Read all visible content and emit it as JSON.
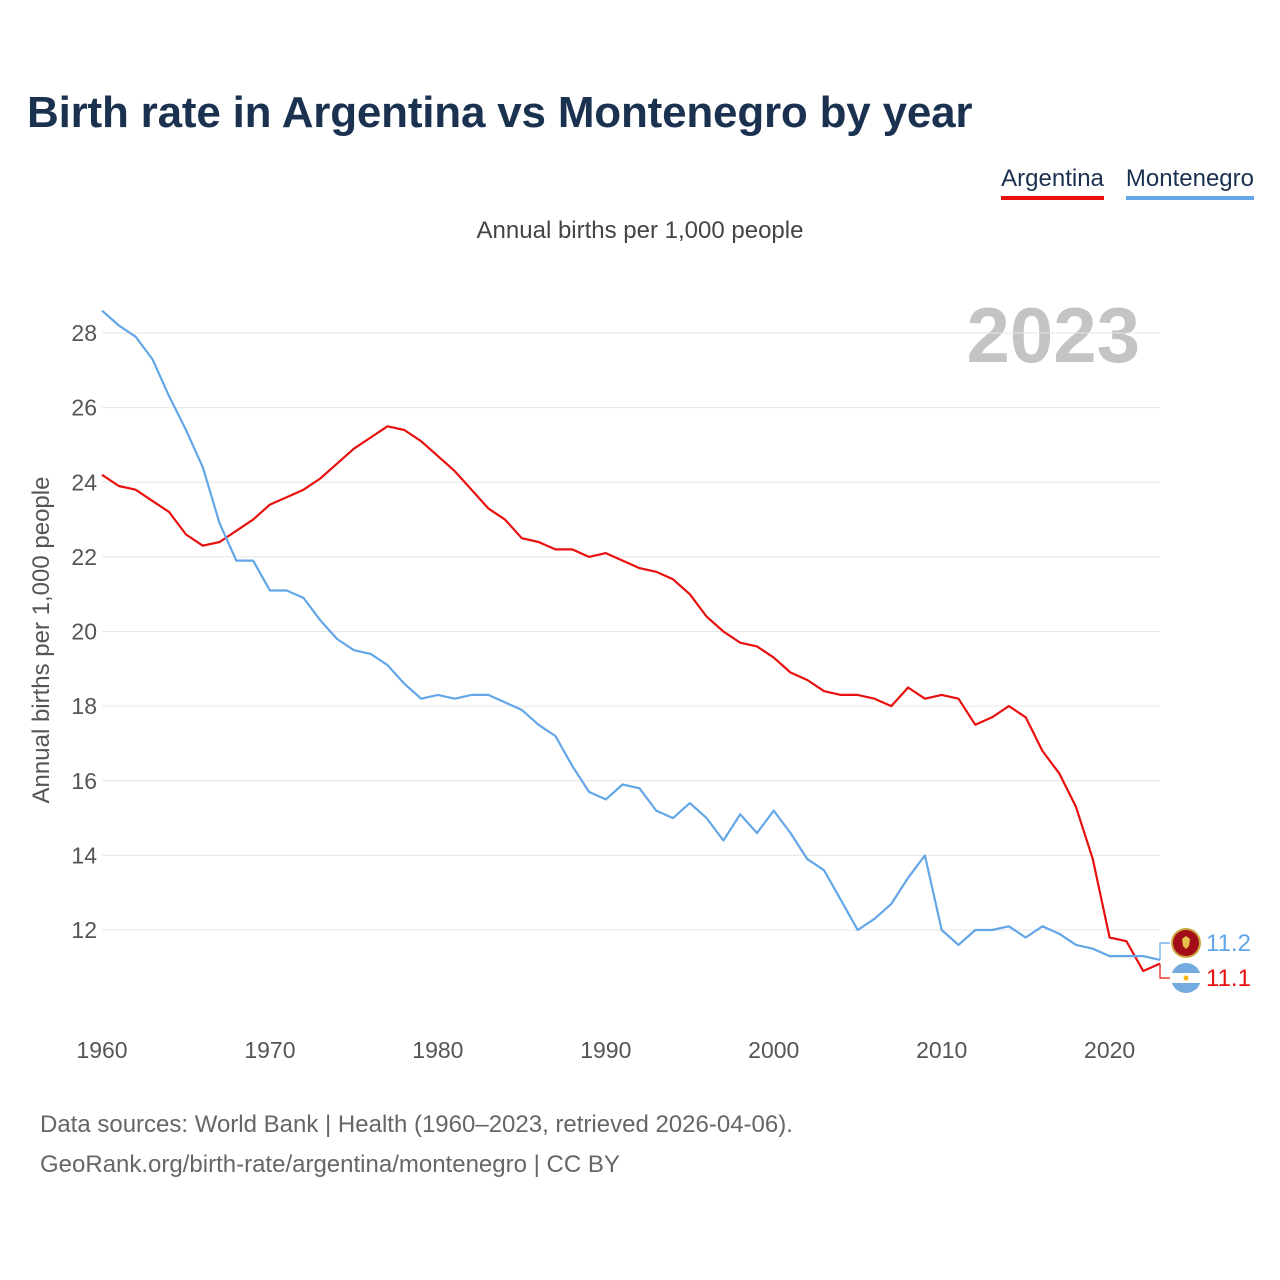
{
  "title": "Birth rate in Argentina vs Montenegro by year",
  "subtitle": "Annual births per 1,000 people",
  "year_label": "2023",
  "legend": [
    {
      "name": "Argentina",
      "color": "#e8100f"
    },
    {
      "name": "Montenegro",
      "color": "#63a6e8"
    }
  ],
  "source": {
    "line1": "Data sources: World Bank | Health (1960–2023, retrieved 2026-04-06).",
    "line2": "GeoRank.org/birth-rate/argentina/montenegro | CC BY"
  },
  "chart_data": {
    "type": "line",
    "title": "Birth rate in Argentina vs Montenegro by year",
    "xlabel": "",
    "ylabel": "Annual births per 1,000 people",
    "xlim": [
      1960,
      2023
    ],
    "ylim": [
      10.5,
      29
    ],
    "grid": true,
    "x_ticks": [
      1960,
      1970,
      1980,
      1990,
      2000,
      2010,
      2020
    ],
    "y_ticks": [
      12,
      14,
      16,
      18,
      20,
      22,
      24,
      26,
      28
    ],
    "x": [
      1960,
      1961,
      1962,
      1963,
      1964,
      1965,
      1966,
      1967,
      1968,
      1969,
      1970,
      1971,
      1972,
      1973,
      1974,
      1975,
      1976,
      1977,
      1978,
      1979,
      1980,
      1981,
      1982,
      1983,
      1984,
      1985,
      1986,
      1987,
      1988,
      1989,
      1990,
      1991,
      1992,
      1993,
      1994,
      1995,
      1996,
      1997,
      1998,
      1999,
      2000,
      2001,
      2002,
      2003,
      2004,
      2005,
      2006,
      2007,
      2008,
      2009,
      2010,
      2011,
      2012,
      2013,
      2014,
      2015,
      2016,
      2017,
      2018,
      2019,
      2020,
      2021,
      2022,
      2023
    ],
    "series": [
      {
        "name": "Argentina",
        "color": "#e8100f",
        "end_label": "11.1",
        "values": [
          24.2,
          23.9,
          23.8,
          23.5,
          23.2,
          22.6,
          22.3,
          22.4,
          22.7,
          23.0,
          23.4,
          23.6,
          23.8,
          24.1,
          24.5,
          24.9,
          25.2,
          25.5,
          25.4,
          25.1,
          24.7,
          24.3,
          23.8,
          23.3,
          23.0,
          22.5,
          22.4,
          22.2,
          22.2,
          22.0,
          22.1,
          21.9,
          21.7,
          21.6,
          21.4,
          21.0,
          20.4,
          20.0,
          19.7,
          19.6,
          19.3,
          18.9,
          18.7,
          18.4,
          18.3,
          18.3,
          18.2,
          18.0,
          18.5,
          18.2,
          18.3,
          18.2,
          17.5,
          17.7,
          18.0,
          17.7,
          16.8,
          16.2,
          15.3,
          13.9,
          11.8,
          11.7,
          10.9,
          11.1
        ]
      },
      {
        "name": "Montenegro",
        "color": "#63a6e8",
        "end_label": "11.2",
        "values": [
          28.6,
          28.2,
          27.9,
          27.3,
          26.3,
          25.4,
          24.4,
          22.9,
          21.9,
          21.9,
          21.1,
          21.1,
          20.9,
          20.3,
          19.8,
          19.5,
          19.4,
          19.1,
          18.6,
          18.2,
          18.3,
          18.2,
          18.3,
          18.3,
          18.1,
          17.9,
          17.5,
          17.2,
          16.4,
          15.7,
          15.5,
          15.9,
          15.8,
          15.2,
          15.0,
          15.4,
          15.0,
          14.4,
          15.1,
          14.6,
          15.2,
          14.6,
          13.9,
          13.6,
          12.8,
          12.0,
          12.3,
          12.7,
          13.4,
          14.0,
          12.0,
          11.6,
          12.0,
          12.0,
          12.1,
          11.8,
          12.1,
          11.9,
          11.6,
          11.5,
          11.3,
          11.3,
          11.3,
          11.2
        ]
      }
    ]
  }
}
